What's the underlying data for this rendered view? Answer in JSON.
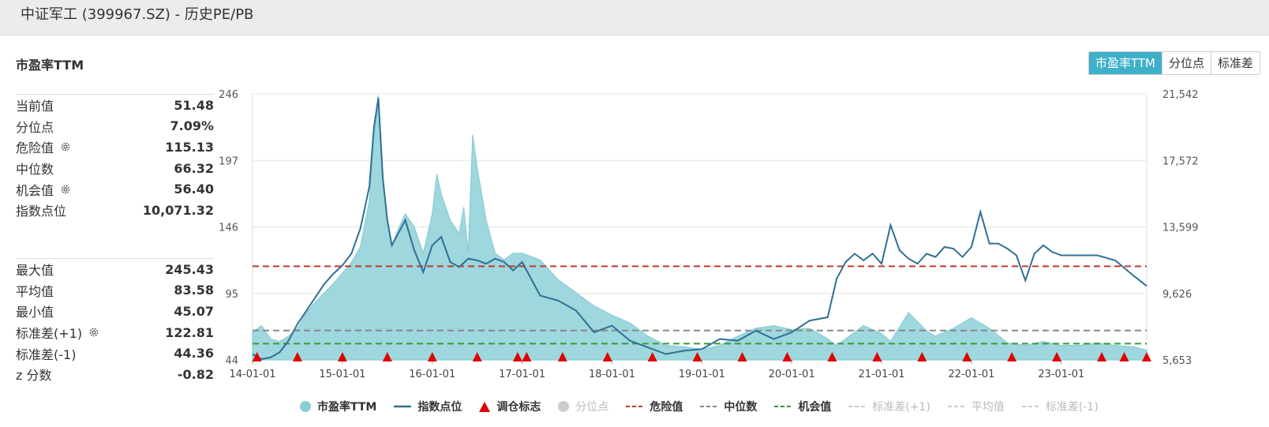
{
  "window": {
    "title": "中证军工 (399967.SZ) - 历史PE/PB"
  },
  "section": {
    "title": "市盈率TTM"
  },
  "toggles": [
    {
      "label": "市盈率TTM",
      "active": true
    },
    {
      "label": "分位点",
      "active": false
    },
    {
      "label": "标准差",
      "active": false
    }
  ],
  "stats_top": [
    {
      "label": "当前值",
      "value": "51.48",
      "gear": false
    },
    {
      "label": "分位点",
      "value": "7.09%",
      "gear": false
    },
    {
      "label": "危险值",
      "value": "115.13",
      "gear": true
    },
    {
      "label": "中位数",
      "value": "66.32",
      "gear": false
    },
    {
      "label": "机会值",
      "value": "56.40",
      "gear": true
    },
    {
      "label": "指数点位",
      "value": "10,071.32",
      "gear": false
    }
  ],
  "stats_bottom": [
    {
      "label": "最大值",
      "value": "245.43",
      "gear": false
    },
    {
      "label": "平均值",
      "value": "83.58",
      "gear": false
    },
    {
      "label": "最小值",
      "value": "45.07",
      "gear": false
    },
    {
      "label": "标准差(+1)",
      "value": "122.81",
      "gear": true
    },
    {
      "label": "标准差(-1)",
      "value": "44.36",
      "gear": false
    },
    {
      "label": "z 分数",
      "value": "-0.82",
      "gear": false
    }
  ],
  "colors": {
    "pe_fill": "#9ed7dd",
    "pe_line": "#8acdd5",
    "index_line": "#2f6f94",
    "danger": "#c0392b",
    "median": "#888888",
    "opportunity": "#3a9a3a",
    "marker": "#e00000",
    "accent": "#3fb0c9"
  },
  "chart_data": {
    "type": "line",
    "x_ticks": [
      "14-01-01",
      "15-01-01",
      "16-01-01",
      "17-01-01",
      "18-01-01",
      "19-01-01",
      "20-01-01",
      "21-01-01",
      "22-01-01",
      "23-01-01"
    ],
    "y_left_ticks": [
      "246",
      "197",
      "146",
      "95",
      "44"
    ],
    "y_left_range": [
      44,
      246
    ],
    "y_right_ticks": [
      "21,542",
      "17,572",
      "13,599",
      "9,626",
      "5,653"
    ],
    "y_right_range": [
      5653,
      21542
    ],
    "x_range": [
      2014.0,
      2023.95
    ],
    "danger_value": 115.13,
    "median_value": 66.32,
    "opportunity_value": 56.4,
    "series": [
      {
        "name": "市盈率TTM",
        "x": [
          2014.0,
          2014.1,
          2014.2,
          2014.3,
          2014.4,
          2014.5,
          2014.6,
          2014.7,
          2014.8,
          2014.9,
          2015.0,
          2015.1,
          2015.2,
          2015.3,
          2015.35,
          2015.4,
          2015.45,
          2015.5,
          2015.55,
          2015.6,
          2015.7,
          2015.8,
          2015.9,
          2016.0,
          2016.05,
          2016.1,
          2016.2,
          2016.3,
          2016.35,
          2016.4,
          2016.45,
          2016.5,
          2016.6,
          2016.7,
          2016.8,
          2016.9,
          2017.0,
          2017.2,
          2017.4,
          2017.6,
          2017.8,
          2018.0,
          2018.2,
          2018.4,
          2018.6,
          2018.8,
          2019.0,
          2019.2,
          2019.4,
          2019.6,
          2019.8,
          2020.0,
          2020.2,
          2020.4,
          2020.5,
          2020.6,
          2020.8,
          2021.0,
          2021.1,
          2021.3,
          2021.5,
          2021.6,
          2021.8,
          2022.0,
          2022.2,
          2022.4,
          2022.6,
          2022.8,
          2023.0,
          2023.2,
          2023.4,
          2023.6,
          2023.8,
          2023.95
        ],
        "values": [
          65,
          70,
          60,
          58,
          62,
          68,
          80,
          88,
          95,
          102,
          110,
          118,
          130,
          165,
          210,
          245,
          180,
          150,
          130,
          140,
          155,
          145,
          125,
          155,
          185,
          170,
          150,
          140,
          160,
          125,
          215,
          190,
          150,
          125,
          120,
          125,
          125,
          120,
          105,
          95,
          85,
          78,
          72,
          62,
          55,
          54,
          52,
          55,
          62,
          68,
          70,
          67,
          68,
          60,
          55,
          60,
          70,
          64,
          58,
          80,
          66,
          62,
          68,
          76,
          68,
          57,
          55,
          58,
          55,
          55,
          57,
          55,
          54,
          51.48
        ]
      },
      {
        "name": "指数点位",
        "x": [
          2014.0,
          2014.1,
          2014.2,
          2014.3,
          2014.4,
          2014.5,
          2014.6,
          2014.7,
          2014.8,
          2014.9,
          2015.0,
          2015.1,
          2015.2,
          2015.3,
          2015.35,
          2015.4,
          2015.45,
          2015.5,
          2015.55,
          2015.6,
          2015.7,
          2015.8,
          2015.9,
          2016.0,
          2016.1,
          2016.2,
          2016.3,
          2016.4,
          2016.5,
          2016.6,
          2016.7,
          2016.8,
          2016.9,
          2017.0,
          2017.2,
          2017.4,
          2017.6,
          2017.8,
          2018.0,
          2018.2,
          2018.4,
          2018.6,
          2018.8,
          2019.0,
          2019.2,
          2019.4,
          2019.6,
          2019.8,
          2020.0,
          2020.2,
          2020.4,
          2020.5,
          2020.6,
          2020.7,
          2020.8,
          2020.9,
          2021.0,
          2021.1,
          2021.2,
          2021.3,
          2021.4,
          2021.5,
          2021.6,
          2021.7,
          2021.8,
          2021.9,
          2022.0,
          2022.1,
          2022.2,
          2022.3,
          2022.4,
          2022.5,
          2022.6,
          2022.7,
          2022.8,
          2022.9,
          2023.0,
          2023.2,
          2023.4,
          2023.6,
          2023.8,
          2023.95
        ],
        "values": [
          6000,
          5700,
          5800,
          6100,
          6800,
          7800,
          8600,
          9400,
          10200,
          10800,
          11300,
          12000,
          13500,
          16000,
          19500,
          21300,
          16500,
          14000,
          12500,
          13000,
          14000,
          12200,
          10900,
          12500,
          13000,
          11500,
          11200,
          11700,
          11600,
          11400,
          11700,
          11500,
          11000,
          11500,
          9500,
          9200,
          8600,
          7300,
          7700,
          6800,
          6400,
          6000,
          6200,
          6300,
          6900,
          6800,
          7400,
          6900,
          7300,
          8000,
          8200,
          10500,
          11500,
          12000,
          11600,
          12000,
          11400,
          13700,
          12200,
          11700,
          11400,
          12000,
          11800,
          12400,
          12300,
          11800,
          12400,
          14500,
          12600,
          12600,
          12300,
          11900,
          10400,
          12000,
          12500,
          12100,
          11900,
          11900,
          11900,
          11600,
          10700,
          10071.32
        ]
      }
    ],
    "marker_x": [
      2014.05,
      2014.5,
      2015.0,
      2015.5,
      2016.0,
      2016.5,
      2016.95,
      2017.05,
      2017.45,
      2017.95,
      2018.45,
      2018.95,
      2019.45,
      2019.95,
      2020.45,
      2020.95,
      2021.45,
      2021.95,
      2022.45,
      2022.95,
      2023.45,
      2023.7,
      2023.95
    ],
    "legend": [
      {
        "label": "市盈率TTM",
        "kind": "dot",
        "active": true
      },
      {
        "label": "指数点位",
        "kind": "line",
        "active": true
      },
      {
        "label": "调仓标志",
        "kind": "triangle",
        "active": true
      },
      {
        "label": "分位点",
        "kind": "dot-grey",
        "active": false
      },
      {
        "label": "危险值",
        "kind": "dash-red",
        "active": true
      },
      {
        "label": "中位数",
        "kind": "dash-grey",
        "active": true
      },
      {
        "label": "机会值",
        "kind": "dash-green",
        "active": true
      },
      {
        "label": "标准差(+1)",
        "kind": "dash-light",
        "active": false
      },
      {
        "label": "平均值",
        "kind": "dash-light",
        "active": false
      },
      {
        "label": "标准差(-1)",
        "kind": "dash-light",
        "active": false
      }
    ]
  }
}
